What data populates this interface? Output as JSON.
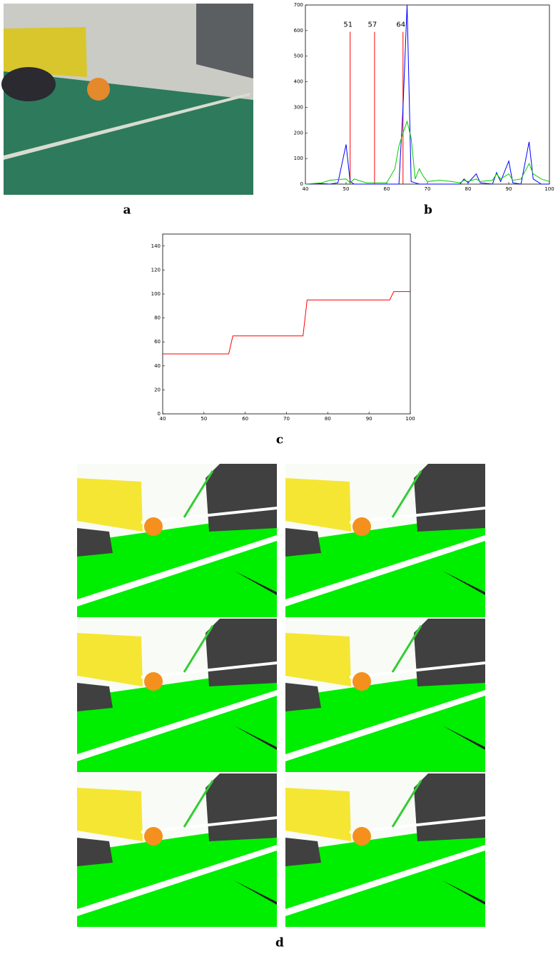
{
  "panel_labels": [
    "a",
    "b",
    "c",
    "d"
  ],
  "chart_data": [
    {
      "type": "line",
      "x": [
        40,
        44,
        46,
        48,
        50,
        51,
        52,
        55,
        58,
        60,
        62,
        63,
        64,
        65,
        66,
        67,
        68,
        69,
        70,
        73,
        76,
        78,
        79,
        80,
        82,
        83,
        86,
        87,
        88,
        90,
        91,
        93,
        95,
        96,
        98,
        100
      ],
      "series": [
        {
          "color": "#0000ff",
          "values": [
            0,
            2,
            0,
            5,
            155,
            10,
            0,
            0,
            0,
            0,
            0,
            0,
            300,
            700,
            10,
            5,
            0,
            0,
            0,
            0,
            0,
            0,
            20,
            5,
            40,
            5,
            0,
            45,
            10,
            90,
            5,
            0,
            165,
            20,
            0,
            0
          ]
        },
        {
          "color": "#00cc00",
          "values": [
            0,
            5,
            15,
            18,
            20,
            5,
            20,
            5,
            5,
            5,
            60,
            150,
            200,
            245,
            180,
            20,
            60,
            30,
            10,
            15,
            10,
            5,
            15,
            10,
            20,
            10,
            15,
            40,
            20,
            40,
            15,
            20,
            80,
            40,
            20,
            10
          ]
        }
      ],
      "vlines": [
        51,
        57,
        64
      ],
      "vline_color": "#ff0000",
      "xlim": [
        40,
        100
      ],
      "ylim": [
        0,
        700
      ],
      "xticks": [
        40,
        50,
        60,
        70,
        80,
        90,
        100
      ],
      "yticks": [
        0,
        100,
        200,
        300,
        400,
        500,
        600,
        700
      ]
    },
    {
      "type": "line",
      "x": [
        40,
        56,
        57,
        74,
        75,
        95,
        96,
        100
      ],
      "series": [
        {
          "color": "#ff0000",
          "values": [
            50,
            50,
            65,
            65,
            95,
            95,
            102,
            102
          ]
        }
      ],
      "xlim": [
        40,
        100
      ],
      "ylim": [
        0,
        150
      ],
      "xticks": [
        40,
        50,
        60,
        70,
        80,
        90,
        100
      ],
      "yticks": [
        0,
        20,
        40,
        60,
        80,
        100,
        120,
        140
      ]
    }
  ]
}
